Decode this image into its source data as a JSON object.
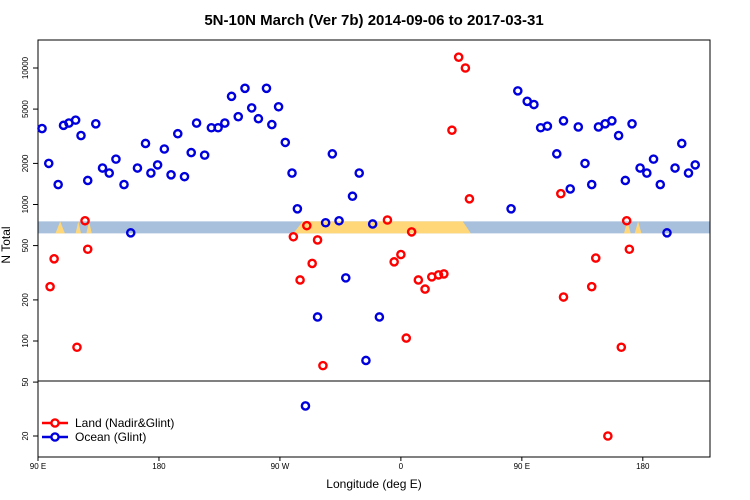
{
  "colors": {
    "land": "#ff0000",
    "ocean": "#0000dd",
    "band": "#a8c0dc",
    "band_fill": "#ffd778",
    "frame": "#000000"
  },
  "chart_data": {
    "type": "scatter",
    "title": "5N-10N March (Ver 7b)   2014-09-06 to 2017-03-31",
    "xlabel": "Longitude (deg E)",
    "ylabel": "N Total",
    "y_scale": "log",
    "x_ticks": [
      {
        "x": 0,
        "label": "90 E"
      },
      {
        "x": 90,
        "label": "180"
      },
      {
        "x": 180,
        "label": "90 W"
      },
      {
        "x": 270,
        "label": "0"
      },
      {
        "x": 360,
        "label": "90 E"
      },
      {
        "x": 450,
        "label": "180"
      }
    ],
    "y_ticks_top": [
      "100",
      "200",
      "500",
      "1000",
      "2000",
      "5000",
      "10000"
    ],
    "y_ticks_bottom": [
      "20",
      "50"
    ],
    "band_center": 680,
    "legend": [
      {
        "name": "Land (Nadir&Glint)",
        "series": "land"
      },
      {
        "name": "Ocean (Glint)",
        "series": "ocean"
      }
    ],
    "series": [
      {
        "name": "Ocean (Glint)",
        "points": [
          [
            3,
            3600
          ],
          [
            8,
            2000
          ],
          [
            15,
            1400
          ],
          [
            19,
            3800
          ],
          [
            23,
            3950
          ],
          [
            28,
            4150
          ],
          [
            32,
            3200
          ],
          [
            37,
            1500
          ],
          [
            43,
            3900
          ],
          [
            48,
            1850
          ],
          [
            53,
            1700
          ],
          [
            58,
            2150
          ],
          [
            64,
            1400
          ],
          [
            69,
            620
          ],
          [
            74,
            1850
          ],
          [
            80,
            2800
          ],
          [
            84,
            1700
          ],
          [
            89,
            1950
          ],
          [
            94,
            2550
          ],
          [
            99,
            1650
          ],
          [
            104,
            3300
          ],
          [
            109,
            1600
          ],
          [
            114,
            2400
          ],
          [
            118,
            3950
          ],
          [
            124,
            2300
          ],
          [
            129,
            3650
          ],
          [
            134,
            3650
          ],
          [
            139,
            3950
          ],
          [
            144,
            6200
          ],
          [
            149,
            4400
          ],
          [
            154,
            7100
          ],
          [
            159,
            5100
          ],
          [
            164,
            4250
          ],
          [
            170,
            7100
          ],
          [
            174,
            3850
          ],
          [
            179,
            5200
          ],
          [
            184,
            2850
          ],
          [
            189,
            1700
          ],
          [
            193,
            930
          ],
          [
            199,
            33
          ],
          [
            208,
            150
          ],
          [
            214,
            735
          ],
          [
            219,
            2350
          ],
          [
            224,
            760
          ],
          [
            229,
            290
          ],
          [
            234,
            1150
          ],
          [
            239,
            1700
          ],
          [
            244,
            72
          ],
          [
            249,
            720
          ],
          [
            254,
            150
          ],
          [
            352,
            930
          ],
          [
            357,
            6800
          ],
          [
            364,
            5700
          ],
          [
            369,
            5400
          ],
          [
            374,
            3650
          ],
          [
            379,
            3750
          ],
          [
            386,
            2350
          ],
          [
            391,
            4100
          ],
          [
            396,
            1300
          ],
          [
            402,
            3700
          ],
          [
            407,
            2000
          ],
          [
            412,
            1400
          ],
          [
            417,
            3700
          ],
          [
            422,
            3900
          ],
          [
            427,
            4100
          ],
          [
            432,
            3200
          ],
          [
            437,
            1500
          ],
          [
            442,
            3900
          ],
          [
            448,
            1850
          ],
          [
            453,
            1700
          ],
          [
            458,
            2150
          ],
          [
            463,
            1400
          ],
          [
            468,
            620
          ],
          [
            474,
            1850
          ],
          [
            479,
            2800
          ],
          [
            484,
            1700
          ],
          [
            489,
            1950
          ]
        ]
      },
      {
        "name": "Land (Nadir&Glint)",
        "points": [
          [
            9,
            250
          ],
          [
            12,
            400
          ],
          [
            29,
            90
          ],
          [
            35,
            760
          ],
          [
            37,
            470
          ],
          [
            190,
            580
          ],
          [
            195,
            280
          ],
          [
            200,
            700
          ],
          [
            204,
            370
          ],
          [
            208,
            550
          ],
          [
            212,
            66
          ],
          [
            260,
            770
          ],
          [
            265,
            380
          ],
          [
            270,
            430
          ],
          [
            274,
            105
          ],
          [
            278,
            630
          ],
          [
            283,
            280
          ],
          [
            288,
            240
          ],
          [
            293,
            295
          ],
          [
            298,
            305
          ],
          [
            302,
            310
          ],
          [
            308,
            3500
          ],
          [
            313,
            12000
          ],
          [
            318,
            10000
          ],
          [
            321,
            1100
          ],
          [
            389,
            1200
          ],
          [
            391,
            210
          ],
          [
            412,
            250
          ],
          [
            415,
            405
          ],
          [
            424,
            20
          ],
          [
            434,
            90
          ],
          [
            438,
            760
          ],
          [
            440,
            470
          ]
        ]
      }
    ]
  }
}
